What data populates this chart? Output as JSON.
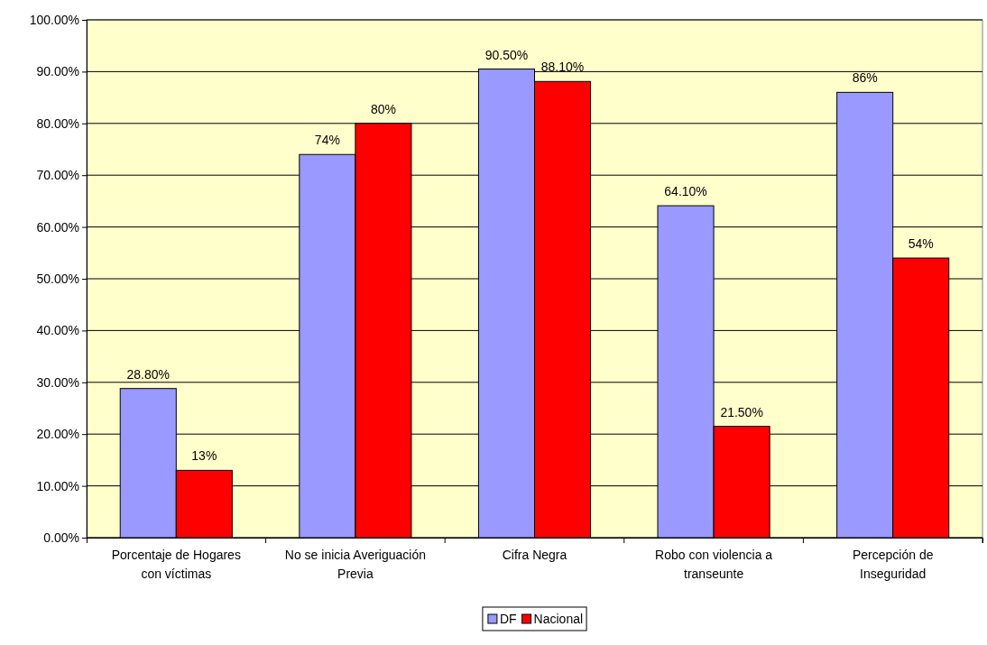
{
  "chart_data": {
    "type": "bar",
    "categories": [
      "Porcentaje de Hogares con víctimas",
      "No se inicia Averiguación Previa",
      "Cifra Negra",
      "Robo con violencia a transeunte",
      "Percepción de Inseguridad"
    ],
    "series": [
      {
        "name": "DF",
        "color": "#9999ff",
        "values": [
          28.8,
          74,
          90.5,
          64.1,
          86
        ],
        "value_labels": [
          "28.80%",
          "74%",
          "90.50%",
          "64.10%",
          "86%"
        ]
      },
      {
        "name": "Nacional",
        "color": "#ff0000",
        "values": [
          13,
          80,
          88.1,
          21.5,
          54
        ],
        "value_labels": [
          "13%",
          "80%",
          "88.10%",
          "21.50%",
          "54%"
        ]
      }
    ],
    "ylim": [
      0,
      100
    ],
    "yticks": [
      {
        "value": 0,
        "label": "0.00%"
      },
      {
        "value": 10,
        "label": "10.00%"
      },
      {
        "value": 20,
        "label": "20.00%"
      },
      {
        "value": 30,
        "label": "30.00%"
      },
      {
        "value": 40,
        "label": "40.00%"
      },
      {
        "value": 50,
        "label": "50.00%"
      },
      {
        "value": 60,
        "label": "60.00%"
      },
      {
        "value": 70,
        "label": "70.00%"
      },
      {
        "value": 80,
        "label": "80.00%"
      },
      {
        "value": 90,
        "label": "90.00%"
      },
      {
        "value": 100,
        "label": "100.00%"
      }
    ],
    "grid": "y",
    "legend": "bottom"
  }
}
